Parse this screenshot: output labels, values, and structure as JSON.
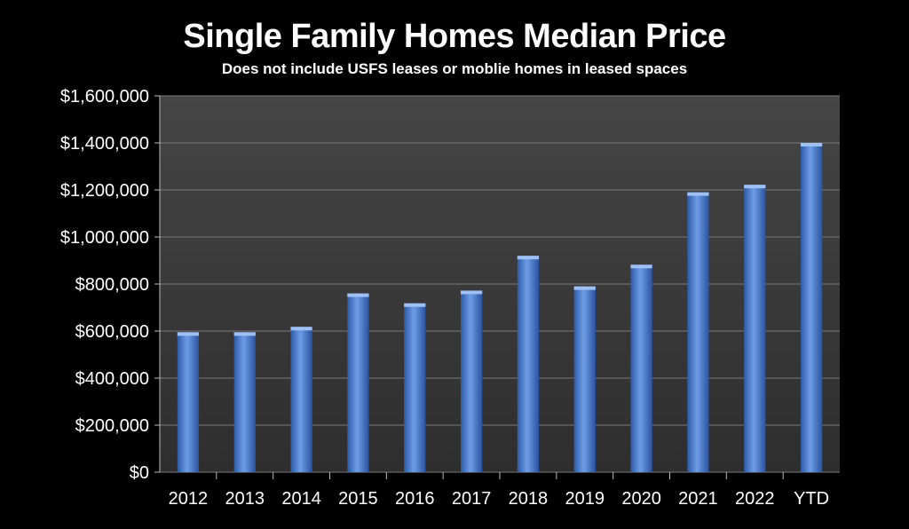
{
  "chart_data": {
    "type": "bar",
    "title": "Single Family Homes Median Price",
    "subtitle": "Does not include USFS leases or moblie homes in leased spaces",
    "categories": [
      "2012",
      "2013",
      "2014",
      "2015",
      "2016",
      "2017",
      "2018",
      "2019",
      "2020",
      "2021",
      "2022",
      "YTD"
    ],
    "values": [
      595000,
      595000,
      618000,
      760000,
      718000,
      772000,
      920000,
      790000,
      882000,
      1190000,
      1222000,
      1400000
    ],
    "ylim": [
      0,
      1600000
    ],
    "yticks": [
      0,
      200000,
      400000,
      600000,
      800000,
      1000000,
      1200000,
      1400000,
      1600000
    ],
    "ytick_labels": [
      "$0",
      "$200,000",
      "$400,000",
      "$600,000",
      "$800,000",
      "$1,000,000",
      "$1,200,000",
      "$1,400,000",
      "$1,600,000"
    ],
    "grid": true,
    "colors": {
      "background": "#000000",
      "plot_area": "#3a3a3a",
      "bar": "#4a7fd0",
      "grid": "#7a7a7a"
    }
  }
}
